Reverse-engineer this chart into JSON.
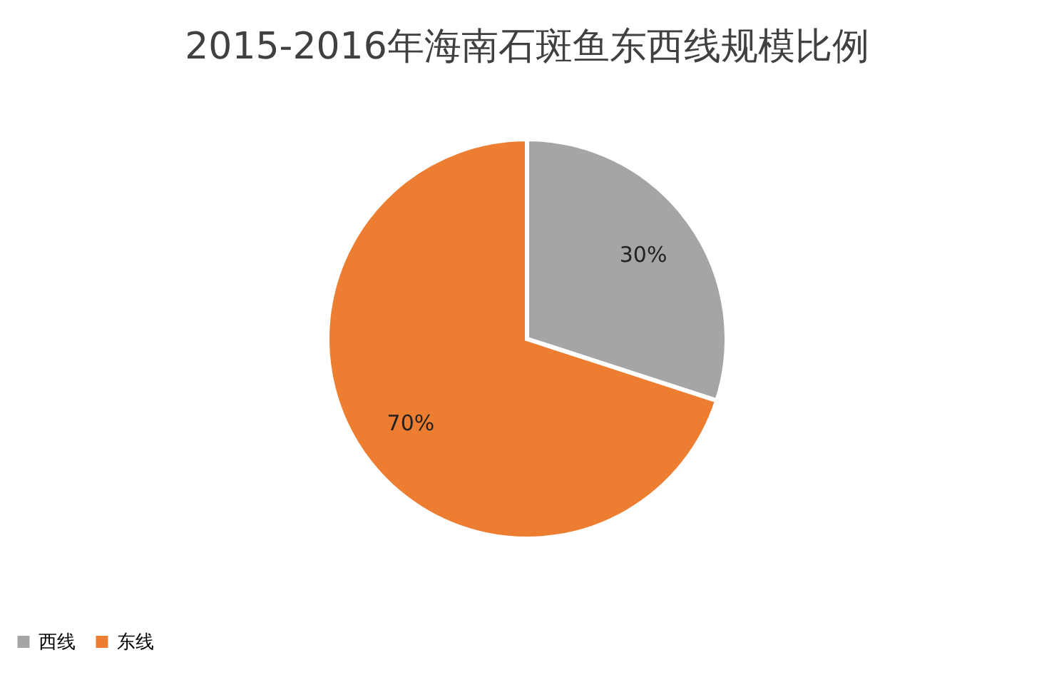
{
  "chart_data": {
    "type": "pie",
    "title": "2015-2016年海南石斑鱼东西线规模比例",
    "categories": [
      "西线",
      "东线"
    ],
    "values": [
      30,
      70
    ],
    "colors": [
      "#a5a5a5",
      "#ed7d31"
    ],
    "value_labels": [
      "30%",
      "70%"
    ],
    "legend": "bottom"
  }
}
